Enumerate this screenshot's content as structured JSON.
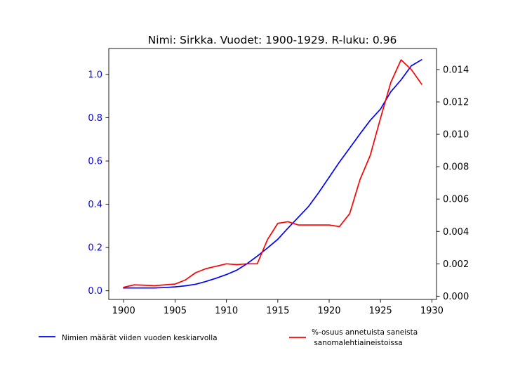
{
  "chart_data": {
    "type": "line",
    "title": "Nimi: Sirkka. Vuodet: 1900-1929. R-luku: 0.96",
    "x": [
      1900,
      1901,
      1902,
      1903,
      1904,
      1905,
      1906,
      1907,
      1908,
      1909,
      1910,
      1911,
      1912,
      1913,
      1914,
      1915,
      1916,
      1917,
      1918,
      1919,
      1920,
      1921,
      1922,
      1923,
      1924,
      1925,
      1926,
      1927,
      1928,
      1929
    ],
    "xlim": [
      1898.55,
      1930.45
    ],
    "xticks": [
      1900,
      1905,
      1910,
      1915,
      1920,
      1925,
      1930
    ],
    "y_left": {
      "lim": [
        -0.04,
        1.12
      ],
      "ticks": [
        0.0,
        0.2,
        0.4,
        0.6,
        0.8,
        1.0
      ],
      "tick_labels": [
        "0.0",
        "0.2",
        "0.4",
        "0.6",
        "0.8",
        "1.0"
      ],
      "color": "#0000ff"
    },
    "y_right": {
      "lim": [
        -0.0002,
        0.0153
      ],
      "ticks": [
        0.0,
        0.002,
        0.004,
        0.006,
        0.008,
        0.01,
        0.012,
        0.014
      ],
      "tick_labels": [
        "0.000",
        "0.002",
        "0.004",
        "0.006",
        "0.008",
        "0.010",
        "0.012",
        "0.014"
      ],
      "color": "#000000"
    },
    "series": [
      {
        "name": "Nimien määrät viiden vuoden keskiarvolla",
        "axis": "left",
        "color": "#0000ff",
        "values": [
          0.013,
          0.013,
          0.013,
          0.013,
          0.015,
          0.018,
          0.023,
          0.03,
          0.043,
          0.058,
          0.075,
          0.095,
          0.125,
          0.16,
          0.198,
          0.238,
          0.29,
          0.34,
          0.39,
          0.455,
          0.525,
          0.595,
          0.66,
          0.725,
          0.788,
          0.84,
          0.92,
          0.975,
          1.04,
          1.068
        ]
      },
      {
        "name": "%-osuus annetuista saneista\nsanomalehtiaineistoissa",
        "axis": "right",
        "color": "#ff0000",
        "values": [
          0.00055,
          0.0007,
          0.00068,
          0.00065,
          0.0007,
          0.00075,
          0.001,
          0.00145,
          0.0017,
          0.00185,
          0.002,
          0.00195,
          0.002,
          0.002,
          0.0035,
          0.0045,
          0.0046,
          0.0044,
          0.0044,
          0.0044,
          0.0044,
          0.0043,
          0.0051,
          0.0072,
          0.0087,
          0.011,
          0.0132,
          0.0146,
          0.014,
          0.0131
        ]
      }
    ],
    "legend": {
      "placement": "below",
      "items": [
        {
          "label": "Nimien määrät viiden vuoden keskiarvolla",
          "color": "#0000ff"
        },
        {
          "label_line1": "%-osuus annetuista saneista",
          "label_line2": " sanomalehtiaineistoissa",
          "color": "#ff0000"
        }
      ]
    }
  }
}
